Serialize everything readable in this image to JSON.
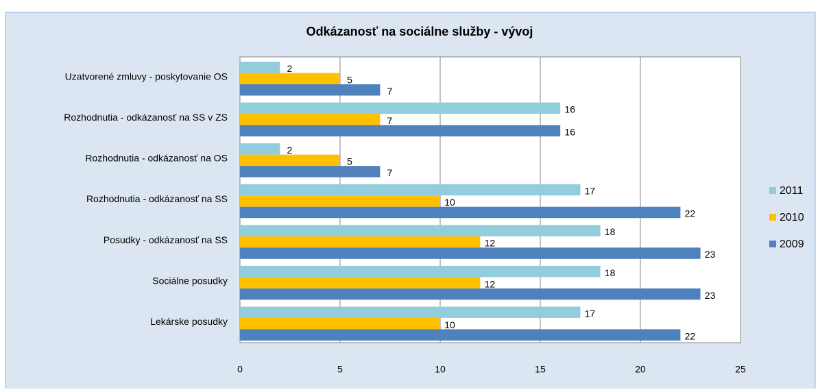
{
  "chart_data": {
    "type": "bar",
    "orientation": "horizontal",
    "title": "Odkázanosť na sociálne služby - vývoj",
    "categories": [
      "Uzatvorené zmluvy - poskytovanie  OS",
      "Rozhodnutia - odkázanosť na SS v ZS",
      "Rozhodnutia - odkázanosť na OS",
      "Rozhodnutia - odkázanosť na SS",
      "Posudky - odkázanosť na SS",
      "Sociálne posudky",
      "Lekárske posudky"
    ],
    "series": [
      {
        "name": "2011",
        "color": "#93cddd",
        "values": [
          2,
          16,
          2,
          17,
          18,
          18,
          17
        ]
      },
      {
        "name": "2010",
        "color": "#ffc000",
        "values": [
          5,
          7,
          5,
          10,
          12,
          12,
          10
        ]
      },
      {
        "name": "2009",
        "color": "#4f81bd",
        "values": [
          7,
          16,
          7,
          22,
          23,
          23,
          22
        ]
      }
    ],
    "xlim": [
      0,
      25
    ],
    "xticks": [
      0,
      5,
      10,
      15,
      20,
      25
    ],
    "grid": true,
    "legend": "right"
  }
}
